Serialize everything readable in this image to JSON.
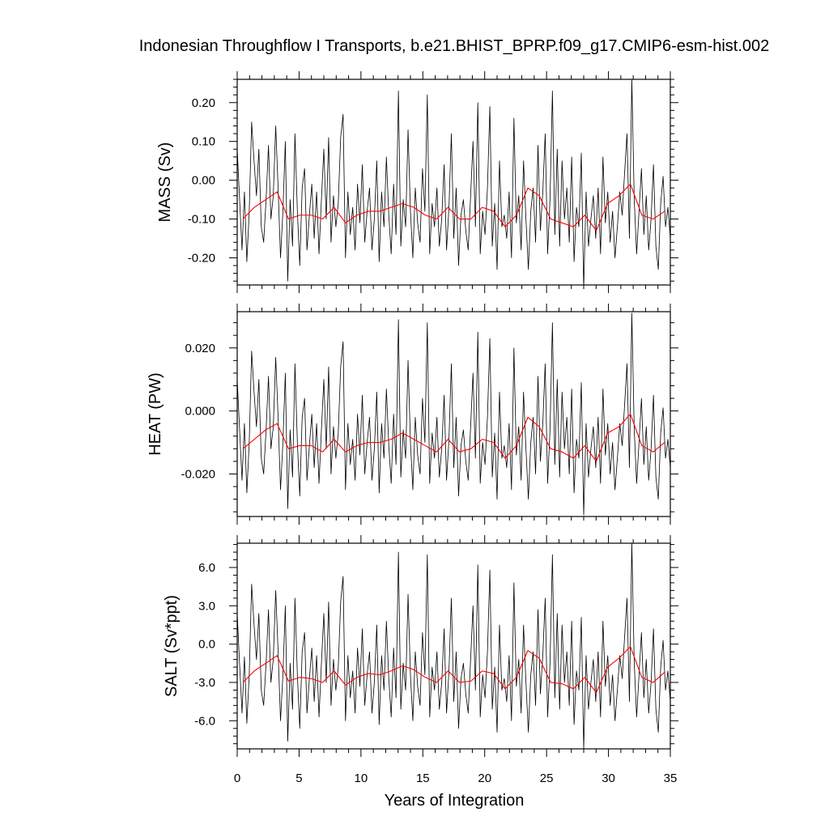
{
  "title": "Indonesian Throughflow I Transports, b.e21.BHIST_BPRP.f09_g17.CMIP6-esm-hist.002",
  "xlabel": "Years of Integration",
  "colors": {
    "monthly": "#000000",
    "annual": "#ff0000"
  },
  "chart_data": [
    {
      "type": "line",
      "ylabel": "MASS (Sv)",
      "xlim": [
        0,
        35
      ],
      "ylim": [
        -0.27,
        0.26
      ],
      "x_ticks": [
        "0",
        "5",
        "10",
        "15",
        "20",
        "25",
        "30",
        "35"
      ],
      "y_ticks": [
        {
          "value": 0.2,
          "label": "0.20"
        },
        {
          "value": 0.1,
          "label": "0.10"
        },
        {
          "value": 0.0,
          "label": "0.00"
        },
        {
          "value": -0.1,
          "label": "-0.10"
        },
        {
          "value": -0.2,
          "label": "-0.20"
        }
      ],
      "series": [
        {
          "values": [
            0.08,
            -0.05,
            -0.18,
            -0.03,
            -0.21,
            -0.08,
            0.15,
            0.05,
            -0.04,
            0.08,
            -0.12,
            -0.16,
            -0.05,
            0.09,
            -0.1,
            -0.04,
            0.14,
            -0.02,
            -0.2,
            -0.08,
            0.1,
            -0.26,
            -0.05,
            -0.17,
            0.12,
            -0.08,
            -0.22,
            -0.02,
            0.03,
            -0.18,
            -0.09,
            -0.01,
            -0.15,
            -0.03,
            -0.19,
            -0.05,
            0.08,
            -0.1,
            0.11,
            -0.16,
            -0.04,
            -0.12,
            -0.06,
            0.11,
            0.17,
            -0.2,
            -0.03,
            -0.14,
            -0.07,
            -0.18,
            -0.01,
            -0.11,
            0.04,
            -0.16,
            -0.08,
            -0.02,
            -0.18,
            -0.1,
            0.05,
            -0.21,
            -0.03,
            -0.12,
            0.06,
            -0.09,
            -0.19,
            -0.01,
            -0.14,
            0.23,
            -0.17,
            -0.05,
            -0.12,
            0.13,
            -0.08,
            -0.2,
            -0.02,
            -0.11,
            -0.16,
            0.03,
            -0.08,
            0.22,
            -0.19,
            -0.06,
            -0.12,
            -0.02,
            -0.17,
            -0.1,
            0.04,
            -0.18,
            -0.07,
            0.12,
            -0.15,
            -0.02,
            -0.22,
            -0.09,
            -0.05,
            -0.13,
            -0.18,
            -0.04,
            0.1,
            -0.12,
            0.2,
            -0.19,
            -0.08,
            -0.14,
            -0.02,
            0.19,
            -0.17,
            -0.06,
            -0.23,
            0.05,
            -0.12,
            -0.09,
            -0.15,
            -0.03,
            -0.2,
            0.16,
            -0.11,
            -0.04,
            -0.18,
            0.05,
            -0.1,
            -0.23,
            -0.08,
            -0.02,
            -0.16,
            0.09,
            -0.13,
            -0.03,
            0.12,
            -0.19,
            -0.05,
            0.23,
            -0.14,
            0.08,
            -0.17,
            0.05,
            -0.1,
            -0.02,
            -0.16,
            0.06,
            -0.21,
            -0.07,
            -0.12,
            0.07,
            -0.28,
            -0.03,
            -0.17,
            -0.1,
            -0.04,
            -0.15,
            -0.02,
            -0.19,
            0.06,
            -0.11,
            -0.03,
            -0.16,
            -0.08,
            -0.2,
            -0.12,
            -0.03,
            -0.09,
            0.02,
            0.12,
            -0.15,
            0.26,
            -0.05,
            -0.19,
            -0.08,
            0.03,
            -0.14,
            -0.04,
            -0.18,
            -0.1,
            0.04,
            -0.17,
            -0.23,
            -0.06,
            0.01,
            -0.12,
            -0.07,
            -0.15
          ],
          "color": "#000000"
        },
        {
          "values": [
            -0.1,
            -0.07,
            -0.05,
            -0.03,
            -0.1,
            -0.09,
            -0.09,
            -0.1,
            -0.07,
            -0.11,
            -0.09,
            -0.08,
            -0.08,
            -0.07,
            -0.06,
            -0.07,
            -0.09,
            -0.1,
            -0.07,
            -0.1,
            -0.1,
            -0.07,
            -0.08,
            -0.12,
            -0.09,
            -0.02,
            -0.04,
            -0.1,
            -0.11,
            -0.12,
            -0.09,
            -0.13,
            -0.06,
            -0.04,
            -0.01,
            -0.09,
            -0.1,
            -0.08
          ],
          "color": "#ff0000"
        }
      ]
    },
    {
      "type": "line",
      "ylabel": "HEAT (PW)",
      "xlim": [
        0,
        35
      ],
      "ylim": [
        -0.0335,
        0.0315
      ],
      "x_ticks": [
        "0",
        "5",
        "10",
        "15",
        "20",
        "25",
        "30",
        "35"
      ],
      "y_ticks": [
        {
          "value": 0.02,
          "label": "0.020"
        },
        {
          "value": 0.0,
          "label": "0.000"
        },
        {
          "value": -0.02,
          "label": "-0.020"
        }
      ],
      "series": [
        {
          "values": [
            0.01,
            -0.006,
            -0.022,
            -0.004,
            -0.026,
            -0.01,
            0.019,
            0.006,
            -0.005,
            0.01,
            -0.015,
            -0.02,
            -0.006,
            0.011,
            -0.012,
            -0.005,
            0.017,
            -0.002,
            -0.025,
            -0.01,
            0.012,
            -0.031,
            -0.006,
            -0.021,
            0.015,
            -0.01,
            -0.027,
            -0.002,
            0.004,
            -0.022,
            -0.011,
            -0.001,
            -0.018,
            -0.004,
            -0.023,
            -0.006,
            0.01,
            -0.012,
            0.014,
            -0.02,
            -0.005,
            -0.015,
            -0.007,
            0.014,
            0.022,
            -0.025,
            -0.004,
            -0.017,
            -0.009,
            -0.022,
            -0.001,
            -0.014,
            0.005,
            -0.02,
            -0.01,
            -0.002,
            -0.022,
            -0.012,
            0.006,
            -0.026,
            -0.004,
            -0.015,
            0.007,
            -0.011,
            -0.023,
            -0.001,
            -0.017,
            0.029,
            -0.021,
            -0.006,
            -0.015,
            0.016,
            -0.01,
            -0.025,
            -0.002,
            -0.014,
            -0.02,
            0.004,
            -0.01,
            0.028,
            -0.023,
            -0.007,
            -0.015,
            -0.002,
            -0.021,
            -0.012,
            0.005,
            -0.022,
            -0.009,
            0.015,
            -0.018,
            -0.002,
            -0.027,
            -0.011,
            -0.006,
            -0.016,
            -0.022,
            -0.005,
            0.012,
            -0.015,
            0.025,
            -0.023,
            -0.01,
            -0.017,
            -0.002,
            0.023,
            -0.021,
            -0.007,
            -0.028,
            0.006,
            -0.015,
            -0.011,
            -0.018,
            -0.004,
            -0.025,
            0.02,
            -0.014,
            -0.005,
            -0.022,
            0.006,
            -0.012,
            -0.028,
            -0.01,
            -0.002,
            -0.02,
            0.011,
            -0.016,
            -0.004,
            0.015,
            -0.023,
            -0.006,
            0.028,
            -0.017,
            0.01,
            -0.021,
            0.006,
            -0.012,
            -0.002,
            -0.02,
            0.007,
            -0.026,
            -0.009,
            -0.015,
            0.009,
            -0.033,
            -0.004,
            -0.021,
            -0.012,
            -0.005,
            -0.018,
            -0.002,
            -0.023,
            0.007,
            -0.014,
            -0.004,
            -0.02,
            -0.01,
            -0.025,
            -0.015,
            -0.004,
            -0.011,
            0.002,
            0.015,
            -0.018,
            0.031,
            -0.006,
            -0.023,
            -0.01,
            0.004,
            -0.017,
            -0.005,
            -0.022,
            -0.012,
            0.005,
            -0.021,
            -0.028,
            -0.007,
            0.001,
            -0.015,
            -0.009,
            -0.018
          ],
          "color": "#000000"
        },
        {
          "values": [
            -0.012,
            -0.009,
            -0.006,
            -0.004,
            -0.012,
            -0.011,
            -0.011,
            -0.013,
            -0.009,
            -0.013,
            -0.011,
            -0.01,
            -0.01,
            -0.009,
            -0.007,
            -0.009,
            -0.011,
            -0.013,
            -0.009,
            -0.013,
            -0.012,
            -0.009,
            -0.01,
            -0.015,
            -0.011,
            -0.002,
            -0.005,
            -0.012,
            -0.013,
            -0.015,
            -0.011,
            -0.016,
            -0.007,
            -0.005,
            -0.001,
            -0.011,
            -0.013,
            -0.01
          ],
          "color": "#ff0000"
        }
      ]
    },
    {
      "type": "line",
      "ylabel": "SALT (Sv*ppt)",
      "xlim": [
        0,
        35
      ],
      "ylim": [
        -8.2,
        7.9
      ],
      "x_ticks": [
        "0",
        "5",
        "10",
        "15",
        "20",
        "25",
        "30",
        "35"
      ],
      "y_ticks": [
        {
          "value": 6.0,
          "label": "6.0"
        },
        {
          "value": 3.0,
          "label": "3.0"
        },
        {
          "value": 0.0,
          "label": "0.0"
        },
        {
          "value": -3.0,
          "label": "-3.0"
        },
        {
          "value": -6.0,
          "label": "-6.0"
        }
      ],
      "series": [
        {
          "values": [
            2.4,
            -1.6,
            -5.4,
            -1.0,
            -6.2,
            -2.4,
            4.7,
            1.5,
            -1.2,
            2.4,
            -3.6,
            -4.8,
            -1.5,
            2.7,
            -3.0,
            -1.2,
            4.2,
            -0.6,
            -6.0,
            -2.4,
            3.0,
            -7.6,
            -1.5,
            -5.1,
            3.6,
            -2.4,
            -6.6,
            -0.6,
            0.9,
            -5.4,
            -2.7,
            -0.3,
            -4.5,
            -0.9,
            -5.7,
            -1.5,
            2.4,
            -3.0,
            3.3,
            -4.8,
            -1.2,
            -3.6,
            -1.8,
            3.3,
            5.3,
            -6.0,
            -0.9,
            -4.2,
            -2.1,
            -5.4,
            -0.3,
            -3.3,
            1.2,
            -4.8,
            -2.4,
            -0.6,
            -5.4,
            -3.0,
            1.5,
            -6.3,
            -0.9,
            -3.6,
            1.8,
            -2.7,
            -5.7,
            -0.3,
            -4.2,
            7.2,
            -5.1,
            -1.5,
            -3.6,
            3.9,
            -2.4,
            -6.0,
            -0.6,
            -3.3,
            -4.8,
            0.9,
            -2.4,
            7.0,
            -5.7,
            -1.8,
            -3.6,
            -0.6,
            -5.1,
            -3.0,
            1.2,
            -5.4,
            -2.1,
            3.6,
            -4.5,
            -0.6,
            -6.6,
            -2.7,
            -1.5,
            -3.9,
            -5.4,
            -1.2,
            3.0,
            -3.6,
            6.2,
            -5.7,
            -2.4,
            -4.2,
            -0.6,
            5.8,
            -5.1,
            -1.8,
            -6.9,
            1.5,
            -3.6,
            -2.7,
            -4.5,
            -0.9,
            -6.0,
            4.8,
            -3.3,
            -1.2,
            -5.4,
            1.5,
            -3.0,
            -6.9,
            -2.4,
            -0.6,
            -4.8,
            2.7,
            -3.9,
            -0.9,
            3.6,
            -5.7,
            -1.5,
            7.0,
            -4.2,
            2.4,
            -5.1,
            1.5,
            -3.0,
            -0.6,
            -4.8,
            1.8,
            -6.3,
            -2.1,
            -3.6,
            2.1,
            -8.2,
            -0.9,
            -5.1,
            -3.0,
            -1.2,
            -4.5,
            -0.6,
            -5.7,
            1.8,
            -3.3,
            -0.9,
            -4.8,
            -2.4,
            -6.0,
            -3.6,
            -0.9,
            -2.7,
            0.6,
            3.6,
            -4.5,
            7.9,
            -1.5,
            -5.7,
            -2.4,
            0.9,
            -4.2,
            -1.2,
            -5.4,
            -3.0,
            1.2,
            -5.1,
            -6.9,
            -1.8,
            0.3,
            -3.6,
            -2.1,
            -4.5
          ],
          "color": "#000000"
        },
        {
          "values": [
            -3.0,
            -2.1,
            -1.5,
            -0.9,
            -2.9,
            -2.6,
            -2.7,
            -3.0,
            -2.1,
            -3.2,
            -2.6,
            -2.3,
            -2.4,
            -2.1,
            -1.7,
            -2.0,
            -2.6,
            -3.0,
            -2.1,
            -3.0,
            -2.9,
            -2.1,
            -2.3,
            -3.5,
            -2.6,
            -0.5,
            -1.1,
            -3.0,
            -3.1,
            -3.5,
            -2.6,
            -3.8,
            -1.8,
            -1.1,
            -0.2,
            -2.6,
            -3.0,
            -2.2
          ],
          "color": "#ff0000"
        }
      ]
    }
  ]
}
